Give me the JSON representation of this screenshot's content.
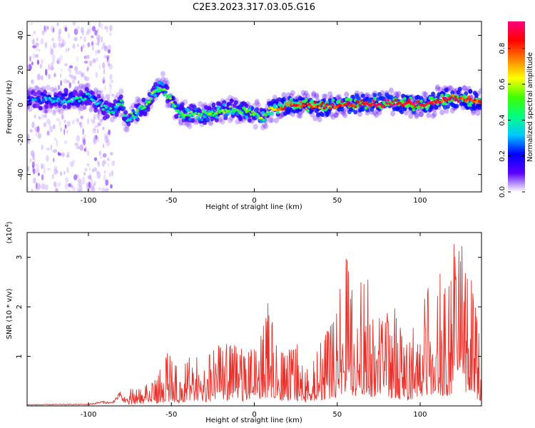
{
  "figure_title": "C2E3.2023.317.03.05.G16",
  "chart_data": [
    {
      "type": "heatmap",
      "xlabel": "Height of straight line (km)",
      "ylabel": "Frequency (Hz)",
      "xlim": [
        -137,
        137
      ],
      "ylim": [
        -50,
        48
      ],
      "x_ticks": [
        -100,
        -50,
        0,
        50,
        100
      ],
      "y_ticks": [
        -40,
        -20,
        0,
        20,
        40
      ],
      "grid": false,
      "colorbar": {
        "label": "Normalized spectral amplitude",
        "range": [
          0.0,
          0.95
        ],
        "ticks": [
          "0.0",
          "0.2",
          "0.4",
          "0.6",
          "0.8"
        ],
        "colormap": [
          "#ffffff",
          "#5a00ff",
          "#0000ff",
          "#00c8ff",
          "#00ff80",
          "#40ff00",
          "#ffff00",
          "#ff8000",
          "#ff0000",
          "#ff0080"
        ]
      },
      "ridge_center": [
        {
          "x": -137,
          "y": 3
        },
        {
          "x": -130,
          "y": 3
        },
        {
          "x": -120,
          "y": 3
        },
        {
          "x": -110,
          "y": 3
        },
        {
          "x": -100,
          "y": 5
        },
        {
          "x": -95,
          "y": 2
        },
        {
          "x": -90,
          "y": -2
        },
        {
          "x": -85,
          "y": -3
        },
        {
          "x": -80,
          "y": 2
        },
        {
          "x": -77,
          "y": -10
        },
        {
          "x": -72,
          "y": -5
        },
        {
          "x": -65,
          "y": 0
        },
        {
          "x": -60,
          "y": 8
        },
        {
          "x": -55,
          "y": 10
        },
        {
          "x": -50,
          "y": 2
        },
        {
          "x": -45,
          "y": -5
        },
        {
          "x": -35,
          "y": -5
        },
        {
          "x": -25,
          "y": -5
        },
        {
          "x": -15,
          "y": -2
        },
        {
          "x": -5,
          "y": -4
        },
        {
          "x": 0,
          "y": -5
        },
        {
          "x": 5,
          "y": -8
        },
        {
          "x": 10,
          "y": -3
        },
        {
          "x": 20,
          "y": 0
        },
        {
          "x": 30,
          "y": 0
        },
        {
          "x": 40,
          "y": -1
        },
        {
          "x": 50,
          "y": 0
        },
        {
          "x": 60,
          "y": 1
        },
        {
          "x": 70,
          "y": 1
        },
        {
          "x": 80,
          "y": 1
        },
        {
          "x": 90,
          "y": 1
        },
        {
          "x": 100,
          "y": 0
        },
        {
          "x": 110,
          "y": 2
        },
        {
          "x": 120,
          "y": 4
        },
        {
          "x": 130,
          "y": 3
        },
        {
          "x": 137,
          "y": 2
        }
      ],
      "peak_amplitude": [
        {
          "x": -137,
          "y": 0.15
        },
        {
          "x": -110,
          "y": 0.3
        },
        {
          "x": -90,
          "y": 0.25
        },
        {
          "x": -75,
          "y": 0.35
        },
        {
          "x": -55,
          "y": 0.45
        },
        {
          "x": -40,
          "y": 0.4
        },
        {
          "x": -20,
          "y": 0.45
        },
        {
          "x": 0,
          "y": 0.4
        },
        {
          "x": 20,
          "y": 0.8
        },
        {
          "x": 40,
          "y": 0.75
        },
        {
          "x": 60,
          "y": 0.85
        },
        {
          "x": 80,
          "y": 0.9
        },
        {
          "x": 100,
          "y": 0.85
        },
        {
          "x": 120,
          "y": 0.8
        },
        {
          "x": 137,
          "y": 0.75
        }
      ]
    },
    {
      "type": "line",
      "xlabel": "Height of straight line (km)",
      "ylabel": "SNR (10 * v/v)",
      "y_multiplier": "(x10",
      "y_multiplier_exp": "4",
      "y_multiplier_close": ")",
      "xlim": [
        -137,
        137
      ],
      "ylim": [
        0,
        3.5
      ],
      "x_ticks": [
        -100,
        -50,
        0,
        50,
        100
      ],
      "y_ticks": [
        1,
        2,
        3
      ],
      "grid": false,
      "series_color": "#e8302a",
      "envelope": [
        {
          "x": -137,
          "y": 0.03
        },
        {
          "x": -100,
          "y": 0.04
        },
        {
          "x": -92,
          "y": 0.1
        },
        {
          "x": -86,
          "y": 0.08
        },
        {
          "x": -78,
          "y": 0.4
        },
        {
          "x": -70,
          "y": 0.35
        },
        {
          "x": -60,
          "y": 0.55
        },
        {
          "x": -52,
          "y": 1.1
        },
        {
          "x": -45,
          "y": 0.75
        },
        {
          "x": -40,
          "y": 1.0
        },
        {
          "x": -30,
          "y": 1.0
        },
        {
          "x": -20,
          "y": 1.3
        },
        {
          "x": -10,
          "y": 1.2
        },
        {
          "x": -5,
          "y": 1.1
        },
        {
          "x": 0,
          "y": 1.2
        },
        {
          "x": 5,
          "y": 1.5
        },
        {
          "x": 8,
          "y": 2.2
        },
        {
          "x": 12,
          "y": 1.5
        },
        {
          "x": 18,
          "y": 1.05
        },
        {
          "x": 25,
          "y": 1.35
        },
        {
          "x": 30,
          "y": 0.8
        },
        {
          "x": 35,
          "y": 0.9
        },
        {
          "x": 42,
          "y": 1.5
        },
        {
          "x": 48,
          "y": 1.7
        },
        {
          "x": 50,
          "y": 2.2
        },
        {
          "x": 56,
          "y": 3.3
        },
        {
          "x": 60,
          "y": 2.1
        },
        {
          "x": 64,
          "y": 2.7
        },
        {
          "x": 68,
          "y": 2.7
        },
        {
          "x": 72,
          "y": 1.8
        },
        {
          "x": 80,
          "y": 1.9
        },
        {
          "x": 85,
          "y": 2.1
        },
        {
          "x": 90,
          "y": 1.35
        },
        {
          "x": 96,
          "y": 1.6
        },
        {
          "x": 100,
          "y": 1.75
        },
        {
          "x": 104,
          "y": 2.5
        },
        {
          "x": 108,
          "y": 2.0
        },
        {
          "x": 112,
          "y": 2.7
        },
        {
          "x": 116,
          "y": 2.3
        },
        {
          "x": 120,
          "y": 3.3
        },
        {
          "x": 124,
          "y": 3.35
        },
        {
          "x": 128,
          "y": 3.0
        },
        {
          "x": 131,
          "y": 2.6
        },
        {
          "x": 135,
          "y": 1.6
        },
        {
          "x": 137,
          "y": 1.2
        }
      ]
    }
  ]
}
